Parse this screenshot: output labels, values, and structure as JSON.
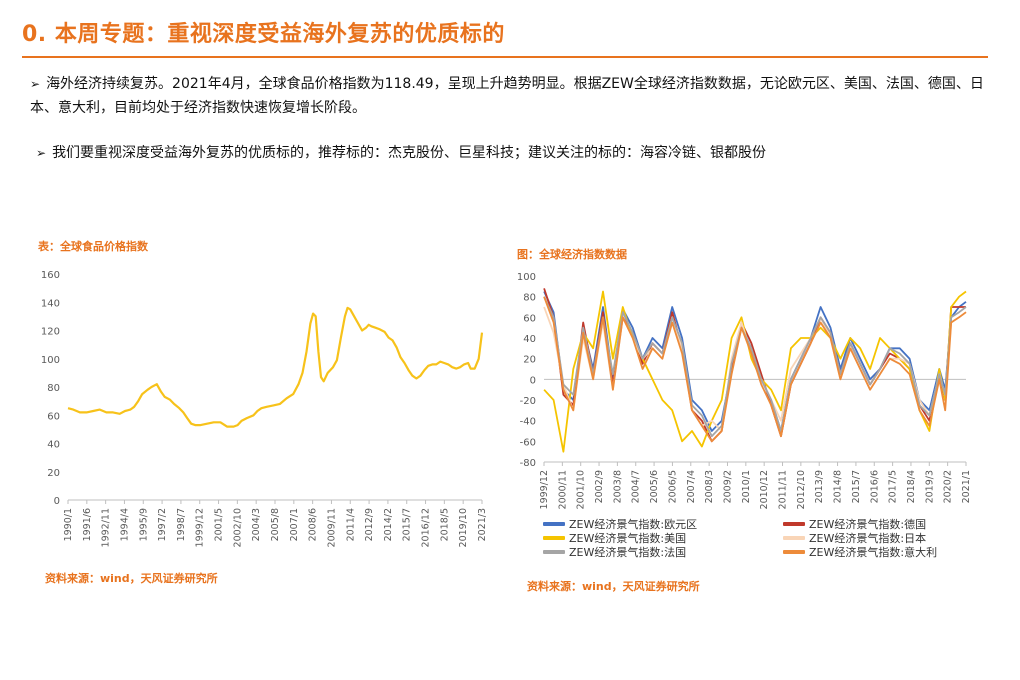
{
  "page": {
    "title": "0. 本周专题：重视深度受益海外复苏的优质标的",
    "bullets": [
      "海外经济持续复苏。2021年4月，全球食品价格指数为118.49，呈现上升趋势明显。根据ZEW全球经济指数数据，无论欧元区、美国、法国、德国、日本、意大利，目前均处于经济指数快速恢复增长阶段。",
      "我们要重视深度受益海外复苏的优质标的，推荐标的：杰克股份、巨星科技；建议关注的标的：海容冷链、银都股份"
    ],
    "bullet_arrow": "➢"
  },
  "colors": {
    "accent": "#E8731E",
    "food_line": "#F7C21A",
    "axis": "#BFBFBF",
    "tick_text": "#595959"
  },
  "chart_data": [
    {
      "type": "line",
      "title": "表：全球食品价格指数",
      "source": "资料来源：wind，天风证券研究所",
      "ylim": [
        0,
        160
      ],
      "yticks": [
        0,
        20,
        40,
        60,
        80,
        100,
        120,
        140,
        160
      ],
      "xlim": [
        1990.0,
        2021.25
      ],
      "xtick_labels": [
        "1990/1",
        "1991/6",
        "1992/11",
        "1994/4",
        "1995/9",
        "1997/2",
        "1998/7",
        "1999/12",
        "2001/5",
        "2002/10",
        "2004/3",
        "2005/8",
        "2007/1",
        "2008/6",
        "2009/11",
        "2011/4",
        "2012/9",
        "2014/2",
        "2015/7",
        "2016/12",
        "2018/5",
        "2019/10",
        "2021/3"
      ],
      "grid": false,
      "series": [
        {
          "color": "#F7C21A",
          "x": [
            1990.0,
            1990.4,
            1990.9,
            1991.4,
            1991.9,
            1992.4,
            1992.9,
            1993.4,
            1993.9,
            1994.3,
            1994.7,
            1995.0,
            1995.3,
            1995.6,
            1996.0,
            1996.3,
            1996.7,
            1997.0,
            1997.3,
            1997.7,
            1998.0,
            1998.4,
            1998.7,
            1999.0,
            1999.3,
            1999.6,
            2000.0,
            2000.5,
            2001.0,
            2001.5,
            2002.0,
            2002.5,
            2002.8,
            2003.1,
            2003.5,
            2004.0,
            2004.3,
            2004.6,
            2005.0,
            2005.5,
            2006.0,
            2006.5,
            2007.0,
            2007.4,
            2007.7,
            2008.0,
            2008.3,
            2008.5,
            2008.7,
            2008.9,
            2009.1,
            2009.3,
            2009.6,
            2010.0,
            2010.3,
            2010.6,
            2010.9,
            2011.1,
            2011.3,
            2011.6,
            2011.9,
            2012.2,
            2012.5,
            2012.7,
            2012.9,
            2013.2,
            2013.5,
            2013.9,
            2014.2,
            2014.5,
            2014.8,
            2015.1,
            2015.4,
            2015.7,
            2016.0,
            2016.3,
            2016.6,
            2016.9,
            2017.2,
            2017.5,
            2017.8,
            2018.1,
            2018.4,
            2018.7,
            2019.0,
            2019.3,
            2019.6,
            2019.9,
            2020.2,
            2020.4,
            2020.7,
            2021.0,
            2021.25
          ],
          "y": [
            65,
            64,
            62,
            62,
            63,
            64,
            62,
            62,
            61,
            63,
            64,
            66,
            70,
            75,
            78,
            80,
            82,
            77,
            73,
            71,
            68,
            65,
            62,
            58,
            54,
            53,
            53,
            54,
            55,
            55,
            52,
            52,
            53,
            56,
            58,
            60,
            63,
            65,
            66,
            67,
            68,
            72,
            75,
            82,
            90,
            105,
            125,
            132,
            130,
            105,
            87,
            84,
            90,
            94,
            99,
            115,
            130,
            136,
            135,
            130,
            125,
            120,
            122,
            124,
            123,
            122,
            121,
            119,
            115,
            113,
            108,
            101,
            97,
            92,
            88,
            86,
            88,
            92,
            95,
            96,
            96,
            98,
            97,
            96,
            94,
            93,
            94,
            96,
            97,
            93,
            93,
            100,
            118.49
          ]
        }
      ]
    },
    {
      "type": "line",
      "title": "图：全球经济指数数据",
      "source": "资料来源：wind，天风证券研究所",
      "ylim": [
        -80,
        100
      ],
      "yticks": [
        -80,
        -60,
        -40,
        -20,
        0,
        20,
        40,
        60,
        80,
        100
      ],
      "xlim": [
        1999.917,
        2021.25
      ],
      "xtick_labels": [
        "1999/12",
        "2000/11",
        "2001/10",
        "2002/9",
        "2003/8",
        "2004/7",
        "2005/6",
        "2006/5",
        "2007/4",
        "2008/3",
        "2009/2",
        "2010/1",
        "2010/12",
        "2011/11",
        "2012/10",
        "2013/9",
        "2014/8",
        "2015/7",
        "2016/6",
        "2017/5",
        "2018/4",
        "2019/3",
        "2020/2",
        "2021/1"
      ],
      "grid": false,
      "x": [
        1999.92,
        2000.4,
        2000.9,
        2001.4,
        2001.9,
        2002.4,
        2002.9,
        2003.4,
        2003.9,
        2004.4,
        2004.9,
        2005.4,
        2005.9,
        2006.4,
        2006.9,
        2007.4,
        2007.9,
        2008.4,
        2008.9,
        2009.4,
        2009.9,
        2010.4,
        2010.9,
        2011.4,
        2011.9,
        2012.4,
        2012.9,
        2013.4,
        2013.9,
        2014.4,
        2014.9,
        2015.4,
        2015.9,
        2016.4,
        2016.9,
        2017.4,
        2017.9,
        2018.4,
        2018.9,
        2019.4,
        2019.9,
        2020.2,
        2020.5,
        2020.9,
        2021.25
      ],
      "series": [
        {
          "name": "ZEW经济景气指数:欧元区",
          "color": "#4472C4",
          "values": [
            85,
            65,
            -10,
            -20,
            50,
            10,
            70,
            0,
            68,
            50,
            20,
            40,
            30,
            70,
            40,
            -20,
            -30,
            -50,
            -40,
            10,
            50,
            30,
            0,
            -20,
            -50,
            0,
            20,
            40,
            70,
            50,
            10,
            40,
            20,
            0,
            10,
            30,
            30,
            20,
            -20,
            -30,
            10,
            -10,
            60,
            70,
            75
          ]
        },
        {
          "name": "ZEW经济景气指数:德国",
          "color": "#C0392B",
          "values": [
            88,
            60,
            -15,
            -25,
            55,
            5,
            65,
            -5,
            60,
            45,
            15,
            35,
            25,
            65,
            30,
            -30,
            -40,
            -60,
            -50,
            10,
            55,
            35,
            5,
            -25,
            -55,
            -5,
            15,
            35,
            60,
            45,
            5,
            35,
            15,
            -5,
            10,
            25,
            20,
            10,
            -25,
            -40,
            5,
            -20,
            70,
            70,
            70
          ]
        },
        {
          "name": "ZEW经济景气指数:美国",
          "color": "#F5C400",
          "values": [
            -10,
            -20,
            -70,
            10,
            45,
            30,
            85,
            20,
            70,
            40,
            20,
            0,
            -20,
            -30,
            -60,
            -50,
            -65,
            -40,
            -20,
            40,
            60,
            20,
            0,
            -10,
            -30,
            30,
            40,
            40,
            50,
            40,
            20,
            40,
            30,
            10,
            40,
            30,
            20,
            10,
            -30,
            -50,
            10,
            -20,
            70,
            80,
            85
          ]
        },
        {
          "name": "ZEW经济景气指数:日本",
          "color": "#F9D5B7",
          "values": [
            70,
            45,
            -5,
            -30,
            40,
            0,
            55,
            -10,
            60,
            40,
            20,
            30,
            20,
            60,
            30,
            -30,
            -45,
            -40,
            -50,
            20,
            55,
            25,
            0,
            -20,
            -40,
            10,
            25,
            40,
            60,
            40,
            0,
            30,
            10,
            -10,
            5,
            20,
            20,
            15,
            -20,
            -35,
            5,
            -15,
            55,
            60,
            65
          ]
        },
        {
          "name": "ZEW经济景气指数:法国",
          "color": "#A5A5A5",
          "values": [
            80,
            60,
            -5,
            -15,
            50,
            5,
            60,
            5,
            65,
            45,
            20,
            35,
            25,
            60,
            35,
            -25,
            -35,
            -55,
            -45,
            15,
            50,
            30,
            0,
            -20,
            -50,
            0,
            20,
            40,
            60,
            45,
            5,
            35,
            15,
            -5,
            10,
            30,
            25,
            15,
            -25,
            -35,
            5,
            -15,
            60,
            65,
            70
          ]
        },
        {
          "name": "ZEW经济景气指数:意大利",
          "color": "#ED8B3A",
          "values": [
            80,
            55,
            -10,
            -30,
            45,
            0,
            60,
            -10,
            60,
            40,
            10,
            30,
            20,
            55,
            25,
            -30,
            -45,
            -60,
            -50,
            5,
            50,
            25,
            -5,
            -25,
            -55,
            -5,
            15,
            35,
            55,
            40,
            0,
            30,
            10,
            -10,
            5,
            20,
            15,
            5,
            -30,
            -45,
            0,
            -30,
            55,
            60,
            65
          ]
        }
      ]
    }
  ]
}
